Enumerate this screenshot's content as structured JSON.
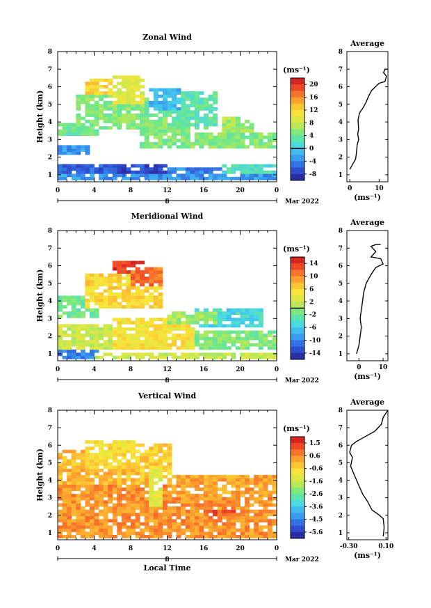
{
  "chart_data": [
    {
      "type": "heatmap",
      "title": "Zonal Wind",
      "ylabel": "Height (km)",
      "unit_label": "(ms⁻¹)",
      "xticks": [
        "0",
        "4",
        "8",
        "12",
        "16",
        "20",
        "0"
      ],
      "yticks": [
        "1",
        "2",
        "3",
        "4",
        "5",
        "6",
        "7",
        "8"
      ],
      "xlim": [
        0,
        24
      ],
      "ylim": [
        0.6,
        8
      ],
      "day_label": "8",
      "date_label": "Mar 2022",
      "colorbar": {
        "ticks": [
          "20",
          "16",
          "12",
          "8",
          "4",
          "0",
          "-4",
          "-8"
        ],
        "range": [
          -10,
          22
        ],
        "zero_marker": 0
      },
      "field_blobs": [
        {
          "t": [
            0,
            24
          ],
          "h": [
            0.7,
            1.0
          ],
          "v": -3
        },
        {
          "t": [
            0,
            6
          ],
          "h": [
            1.0,
            1.5
          ],
          "v": -6
        },
        {
          "t": [
            6,
            12
          ],
          "h": [
            1.0,
            1.5
          ],
          "v": -7
        },
        {
          "t": [
            12,
            18
          ],
          "h": [
            1.0,
            1.3
          ],
          "v": -4
        },
        {
          "t": [
            18,
            24
          ],
          "h": [
            1.0,
            1.5
          ],
          "v": 2
        },
        {
          "t": [
            0,
            3
          ],
          "h": [
            2.0,
            2.6
          ],
          "v": -3
        },
        {
          "t": [
            0,
            4
          ],
          "h": [
            3.2,
            3.8
          ],
          "v": 4
        },
        {
          "t": [
            2,
            10
          ],
          "h": [
            3.5,
            5.5
          ],
          "v": 5
        },
        {
          "t": [
            3,
            6
          ],
          "h": [
            5.5,
            6.3
          ],
          "v": 12
        },
        {
          "t": [
            6,
            9
          ],
          "h": [
            5.0,
            6.5
          ],
          "v": 9
        },
        {
          "t": [
            9,
            16
          ],
          "h": [
            2.5,
            4.5
          ],
          "v": 5
        },
        {
          "t": [
            12,
            17
          ],
          "h": [
            3.6,
            5.6
          ],
          "v": 3
        },
        {
          "t": [
            10,
            13
          ],
          "h": [
            4.5,
            5.8
          ],
          "v": -1
        },
        {
          "t": [
            15,
            24
          ],
          "h": [
            2.4,
            3.4
          ],
          "v": 5
        },
        {
          "t": [
            18,
            21
          ],
          "h": [
            3.4,
            4.2
          ],
          "v": 6
        }
      ],
      "profile": {
        "title": "Average",
        "xticks": [
          "0",
          "10"
        ],
        "xlim": [
          -1,
          13
        ],
        "xlabel": "(ms⁻¹)",
        "points": [
          [
            0,
            1.3
          ],
          [
            1,
            1.6
          ],
          [
            2,
            1.9
          ],
          [
            2.3,
            2.3
          ],
          [
            2.5,
            2.7
          ],
          [
            3,
            3
          ],
          [
            2.7,
            3.3
          ],
          [
            3,
            3.6
          ],
          [
            2.8,
            4.1
          ],
          [
            3.3,
            4.5
          ],
          [
            4.5,
            4.8
          ],
          [
            5.5,
            5.1
          ],
          [
            6.5,
            5.5
          ],
          [
            7.5,
            5.8
          ],
          [
            10,
            6.2
          ],
          [
            12,
            6.3
          ],
          [
            12.5,
            6.6
          ],
          [
            11.5,
            6.8
          ],
          [
            12,
            7.0
          ],
          [
            13,
            7.0
          ]
        ]
      }
    },
    {
      "type": "heatmap",
      "title": "Meridional Wind",
      "ylabel": "Height (km)",
      "unit_label": "(ms⁻¹)",
      "xticks": [
        "0",
        "4",
        "8",
        "12",
        "16",
        "20",
        "0"
      ],
      "yticks": [
        "1",
        "2",
        "3",
        "4",
        "5",
        "6",
        "7",
        "8"
      ],
      "xlim": [
        0,
        24
      ],
      "ylim": [
        0.6,
        8
      ],
      "day_label": "8",
      "date_label": "Mar 2022",
      "colorbar": {
        "ticks": [
          "14",
          "10",
          "6",
          "2",
          "-2",
          "-6",
          "-10",
          "-14"
        ],
        "range": [
          -16,
          16
        ],
        "zero_marker": 0
      },
      "field_blobs": [
        {
          "t": [
            0,
            4
          ],
          "h": [
            0.7,
            1.2
          ],
          "v": -10
        },
        {
          "t": [
            4,
            24
          ],
          "h": [
            0.7,
            1.0
          ],
          "v": 2
        },
        {
          "t": [
            0,
            6
          ],
          "h": [
            1.2,
            2.5
          ],
          "v": 2
        },
        {
          "t": [
            6,
            15
          ],
          "h": [
            1.2,
            3.0
          ],
          "v": 5
        },
        {
          "t": [
            15,
            24
          ],
          "h": [
            1.2,
            2.3
          ],
          "v": -1
        },
        {
          "t": [
            0,
            4
          ],
          "h": [
            3.0,
            4.2
          ],
          "v": -2
        },
        {
          "t": [
            3,
            11
          ],
          "h": [
            3.5,
            5.5
          ],
          "v": 6
        },
        {
          "t": [
            6,
            9
          ],
          "h": [
            5.5,
            6.2
          ],
          "v": 14
        },
        {
          "t": [
            8,
            11
          ],
          "h": [
            4.8,
            5.8
          ],
          "v": 11
        },
        {
          "t": [
            15,
            22
          ],
          "h": [
            2.5,
            3.5
          ],
          "v": -5
        },
        {
          "t": [
            12,
            17
          ],
          "h": [
            2.6,
            3.4
          ],
          "v": 0
        }
      ],
      "profile": {
        "title": "Average",
        "xticks": [
          "0",
          "10"
        ],
        "xlim": [
          -5,
          12
        ],
        "xlabel": "(ms⁻¹)",
        "points": [
          [
            -1,
            1
          ],
          [
            0,
            1.5
          ],
          [
            0.5,
            2.0
          ],
          [
            1,
            2.5
          ],
          [
            0.5,
            3
          ],
          [
            1,
            3.5
          ],
          [
            1.5,
            4
          ],
          [
            2,
            4.5
          ],
          [
            3,
            5
          ],
          [
            5,
            5.5
          ],
          [
            7,
            5.9
          ],
          [
            10,
            6.1
          ],
          [
            9,
            6.4
          ],
          [
            5,
            6.5
          ],
          [
            7,
            6.8
          ],
          [
            5,
            7.1
          ],
          [
            7,
            7.2
          ],
          [
            9,
            7.2
          ]
        ]
      }
    },
    {
      "type": "heatmap",
      "title": "Vertical Wind",
      "ylabel": "Height (km)",
      "xlabel": "Local Time",
      "unit_label": "(ms⁻¹)",
      "xticks": [
        "0",
        "4",
        "8",
        "12",
        "16",
        "20",
        "0"
      ],
      "yticks": [
        "1",
        "2",
        "3",
        "4",
        "5",
        "6",
        "7",
        "8"
      ],
      "xlim": [
        0,
        24
      ],
      "ylim": [
        0.6,
        8
      ],
      "day_label": "8",
      "date_label": "Mar 2022",
      "colorbar": {
        "ticks": [
          "1.5",
          "0.6",
          "-0.6",
          "-1.6",
          "-2.6",
          "-3.6",
          "-4.5",
          "-5.6"
        ],
        "range": [
          -6,
          2
        ],
        "zero_marker": null
      },
      "field_blobs": [
        {
          "t": [
            0,
            24
          ],
          "h": [
            0.7,
            3.6
          ],
          "v": 0.4
        },
        {
          "t": [
            16,
            19
          ],
          "h": [
            1.8,
            2.3
          ],
          "v": 1.1
        },
        {
          "t": [
            0,
            10
          ],
          "h": [
            3.6,
            5.6
          ],
          "v": -0.1
        },
        {
          "t": [
            3,
            9
          ],
          "h": [
            4.5,
            6.1
          ],
          "v": -0.6
        },
        {
          "t": [
            9,
            12
          ],
          "h": [
            4.0,
            6.0
          ],
          "v": -0.3
        },
        {
          "t": [
            10,
            11
          ],
          "h": [
            2.5,
            4.5
          ],
          "v": -1.2
        },
        {
          "t": [
            12,
            24
          ],
          "h": [
            3.0,
            4.3
          ],
          "v": 0.2
        }
      ],
      "profile": {
        "title": "Average",
        "xticks": [
          "-0.30",
          "0.10"
        ],
        "xlim": [
          -0.32,
          0.12
        ],
        "xlabel": "(ms⁻¹)",
        "points": [
          [
            0.07,
            0.8
          ],
          [
            0.08,
            1.3
          ],
          [
            0.07,
            1.8
          ],
          [
            0.03,
            2.0
          ],
          [
            -0.05,
            2.3
          ],
          [
            -0.1,
            2.8
          ],
          [
            -0.15,
            3.2
          ],
          [
            -0.2,
            3.8
          ],
          [
            -0.24,
            4.3
          ],
          [
            -0.28,
            4.8
          ],
          [
            -0.26,
            5.3
          ],
          [
            -0.29,
            5.6
          ],
          [
            -0.27,
            6.0
          ],
          [
            -0.22,
            6.2
          ],
          [
            -0.12,
            6.5
          ],
          [
            -0.02,
            6.8
          ],
          [
            0.05,
            7.2
          ],
          [
            0.07,
            7.6
          ],
          [
            0.12,
            8.0
          ]
        ]
      }
    }
  ],
  "colormap_stops": [
    "#2a1f8f",
    "#2f54d6",
    "#3a9df0",
    "#48d8e8",
    "#6be88c",
    "#cfe84a",
    "#fbe53a",
    "#fba52e",
    "#f4532a",
    "#c8141e"
  ]
}
